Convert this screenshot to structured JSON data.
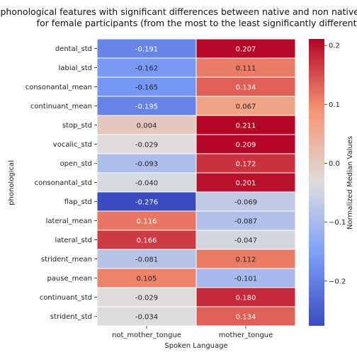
{
  "chart_data": {
    "type": "heatmap",
    "title_lines": [
      "phonological features with significant differences between native and non native s",
      "for female participants (from the most to the least significantly different)"
    ],
    "xlabel": "Spoken Language",
    "ylabel": "phonological",
    "colorbar_label": "Normalized Median Values",
    "columns": [
      "not_mother_tongue",
      "mother_tongue"
    ],
    "rows": [
      "dental_std",
      "labial_std",
      "consonantal_mean",
      "continuant_mean",
      "stop_std",
      "vocalic_std",
      "open_std",
      "consonantal_std",
      "flap_std",
      "lateral_mean",
      "lateral_std",
      "strident_mean",
      "pause_mean",
      "continuant_std",
      "strident_std"
    ],
    "values": [
      [
        -0.191,
        0.207
      ],
      [
        -0.162,
        0.111
      ],
      [
        -0.165,
        0.134
      ],
      [
        -0.195,
        0.067
      ],
      [
        0.004,
        0.211
      ],
      [
        -0.029,
        0.209
      ],
      [
        -0.093,
        0.172
      ],
      [
        -0.04,
        0.201
      ],
      [
        -0.276,
        -0.069
      ],
      [
        0.116,
        -0.087
      ],
      [
        0.166,
        -0.047
      ],
      [
        -0.081,
        0.112
      ],
      [
        0.105,
        -0.101
      ],
      [
        -0.029,
        0.18
      ],
      [
        -0.034,
        0.134
      ]
    ],
    "value_labels": [
      [
        "-0.191",
        "0.207"
      ],
      [
        "-0.162",
        "0.111"
      ],
      [
        "-0.165",
        "0.134"
      ],
      [
        "-0.195",
        "0.067"
      ],
      [
        "0.004",
        "0.211"
      ],
      [
        "-0.029",
        "0.209"
      ],
      [
        "-0.093",
        "0.172"
      ],
      [
        "-0.040",
        "0.201"
      ],
      [
        "-0.276",
        "-0.069"
      ],
      [
        "0.116",
        "-0.087"
      ],
      [
        "0.166",
        "-0.047"
      ],
      [
        "-0.081",
        "0.112"
      ],
      [
        "0.105",
        "-0.101"
      ],
      [
        "-0.029",
        "0.180"
      ],
      [
        "-0.034",
        "0.134"
      ]
    ],
    "colormap": "coolwarm",
    "vmin": -0.276,
    "vmax": 0.211,
    "colorbar_ticks": [
      -0.2,
      -0.1,
      0.0,
      0.1,
      0.2
    ],
    "colorbar_tick_labels": [
      "−0.2",
      "−0.1",
      "0.0",
      "0.1",
      "0.2"
    ]
  }
}
